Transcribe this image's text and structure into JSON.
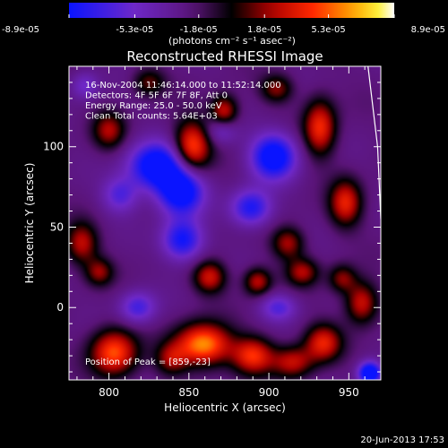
{
  "chart_data": {
    "type": "heatmap",
    "title": "Reconstructed RHESSI Image",
    "xlabel": "Heliocentric X (arcsec)",
    "ylabel": "Heliocentric Y (arcsec)",
    "xlim": [
      775,
      970
    ],
    "ylim": [
      -45,
      150
    ],
    "x_ticks": [
      800,
      850,
      900,
      950
    ],
    "y_ticks": [
      0,
      50,
      100
    ],
    "colorbar": {
      "tick_labels": [
        "-8.9e-05",
        "-5.3e-05",
        "-1.8e-05",
        "1.8e-05",
        "5.3e-05",
        "8.9e-05"
      ],
      "tick_values": [
        -8.9e-05,
        -5.3e-05,
        -1.8e-05,
        1.8e-05,
        5.3e-05,
        8.9e-05
      ],
      "range": [
        -8.9e-05,
        8.9e-05
      ],
      "unit_text": "(photons cm⁻² s⁻¹ asec⁻²)"
    },
    "info_lines": [
      "16-Nov-2004 11:46:14.000 to 11:52:14.000",
      "Detectors: 4F 5F 6F 7F 8F, Att 0",
      "Energy Range: 25.0 - 50.0 keV",
      "Clean      Total counts: 5.64E+03"
    ],
    "peak_label": "Position of Peak = [859,-23]",
    "peak": {
      "x": 859,
      "y": -23
    },
    "limb_line": [
      [
        962,
        150
      ],
      [
        968,
        100
      ],
      [
        970,
        55
      ]
    ],
    "blobs": [
      {
        "x": 859,
        "y": -23,
        "v": 8.9e-05,
        "sx": 12,
        "sy": 9
      },
      {
        "x": 803,
        "y": -28,
        "v": 7.5e-05,
        "sx": 10,
        "sy": 10
      },
      {
        "x": 890,
        "y": -30,
        "v": 6.5e-05,
        "sx": 9,
        "sy": 8
      },
      {
        "x": 934,
        "y": -22,
        "v": 6e-05,
        "sx": 8,
        "sy": 8
      },
      {
        "x": 915,
        "y": -34,
        "v": 5e-05,
        "sx": 9,
        "sy": 7
      },
      {
        "x": 839,
        "y": -32,
        "v": 4e-05,
        "sx": 7,
        "sy": 7
      },
      {
        "x": 958,
        "y": 3,
        "v": 5.5e-05,
        "sx": 7,
        "sy": 9
      },
      {
        "x": 863,
        "y": 19,
        "v": 5.5e-05,
        "sx": 7,
        "sy": 7
      },
      {
        "x": 893,
        "y": 16,
        "v": 5e-05,
        "sx": 6,
        "sy": 6
      },
      {
        "x": 921,
        "y": 22,
        "v": 4.5e-05,
        "sx": 7,
        "sy": 6
      },
      {
        "x": 946,
        "y": 18,
        "v": 4e-05,
        "sx": 6,
        "sy": 6
      },
      {
        "x": 783,
        "y": 40,
        "v": 5e-05,
        "sx": 7,
        "sy": 9
      },
      {
        "x": 794,
        "y": 22,
        "v": 4e-05,
        "sx": 6,
        "sy": 6
      },
      {
        "x": 852,
        "y": 100,
        "v": 7.5e-05,
        "sx": 8,
        "sy": 11
      },
      {
        "x": 872,
        "y": 122,
        "v": 5.5e-05,
        "sx": 6,
        "sy": 7
      },
      {
        "x": 932,
        "y": 112,
        "v": 6.5e-05,
        "sx": 7,
        "sy": 12
      },
      {
        "x": 948,
        "y": 65,
        "v": 6e-05,
        "sx": 7,
        "sy": 10
      },
      {
        "x": 912,
        "y": 40,
        "v": 4.5e-05,
        "sx": 7,
        "sy": 7
      },
      {
        "x": 800,
        "y": 110,
        "v": 4.5e-05,
        "sx": 7,
        "sy": 8
      },
      {
        "x": 905,
        "y": 136,
        "v": 4e-05,
        "sx": 7,
        "sy": 6
      },
      {
        "x": 825,
        "y": 140,
        "v": 3.5e-05,
        "sx": 7,
        "sy": 6
      },
      {
        "x": 830,
        "y": 88,
        "v": -8.5e-05,
        "sx": 12,
        "sy": 10
      },
      {
        "x": 845,
        "y": 72,
        "v": -8e-05,
        "sx": 10,
        "sy": 10
      },
      {
        "x": 903,
        "y": 94,
        "v": -8e-05,
        "sx": 10,
        "sy": 10
      },
      {
        "x": 889,
        "y": 62,
        "v": -6e-05,
        "sx": 9,
        "sy": 8
      },
      {
        "x": 846,
        "y": 42,
        "v": -6.5e-05,
        "sx": 9,
        "sy": 9
      },
      {
        "x": 807,
        "y": 70,
        "v": -4e-05,
        "sx": 8,
        "sy": 8
      },
      {
        "x": 870,
        "y": 110,
        "v": -3e-05,
        "sx": 7,
        "sy": 6
      },
      {
        "x": 818,
        "y": 0,
        "v": -4.5e-05,
        "sx": 8,
        "sy": 7
      },
      {
        "x": 906,
        "y": 0,
        "v": -4e-05,
        "sx": 8,
        "sy": 6
      },
      {
        "x": 963,
        "y": -41,
        "v": -9e-05,
        "sx": 5,
        "sy": 5
      },
      {
        "x": 785,
        "y": 138,
        "v": -3e-05,
        "sx": 6,
        "sy": 6
      }
    ]
  },
  "footer": {
    "timestamp": "20-Jun-2013 17:53"
  }
}
